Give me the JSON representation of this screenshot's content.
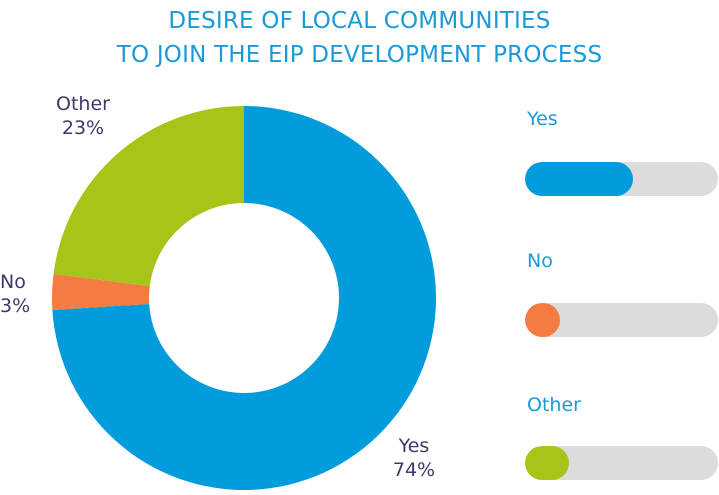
{
  "title": {
    "line1": "DESIRE OF LOCAL COMMUNITIES",
    "line2": "TO JOIN THE EIP DEVELOPMENT PROCESS"
  },
  "chart_data": {
    "type": "pie",
    "title": "DESIRE OF LOCAL COMMUNITIES TO JOIN THE EIP DEVELOPMENT PROCESS",
    "donut": true,
    "categories": [
      "Yes",
      "No",
      "Other"
    ],
    "values": [
      74,
      3,
      23
    ],
    "labels": [
      "74%",
      "3%",
      "23%"
    ],
    "colors": [
      "#019cdc",
      "#f47b42",
      "#a6c518"
    ],
    "legend": "right"
  },
  "legend": [
    {
      "label": "Yes",
      "fill_fraction": 0.56,
      "color": "#019cdc"
    },
    {
      "label": "No",
      "fill_fraction": 0.18,
      "color": "#f47b42"
    },
    {
      "label": "Other",
      "fill_fraction": 0.23,
      "color": "#a6c518"
    }
  ]
}
